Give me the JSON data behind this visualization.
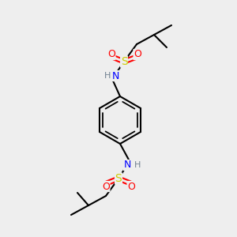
{
  "background_color": "#eeeeee",
  "bond_color": "#000000",
  "bond_width": 1.5,
  "atom_colors": {
    "C": "#000000",
    "H": "#708090",
    "N": "#0000ff",
    "O": "#ff0000",
    "S": "#cccc00"
  },
  "figsize": [
    3.0,
    3.0
  ],
  "dpi": 100
}
